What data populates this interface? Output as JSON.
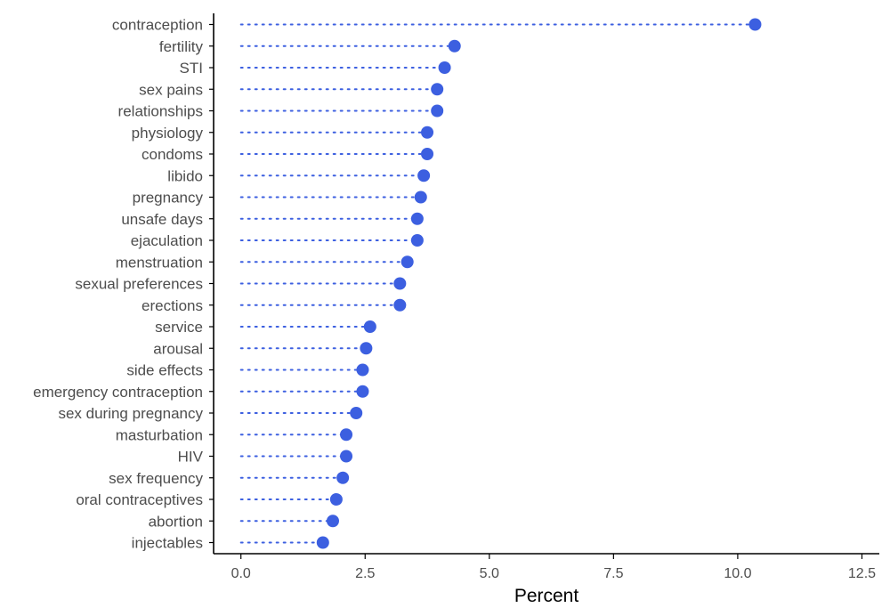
{
  "chart_data": {
    "type": "lollipop",
    "categories": [
      "contraception",
      "fertility",
      "STI",
      "sex pains",
      "relationships",
      "physiology",
      "condoms",
      "libido",
      "pregnancy",
      "unsafe days",
      "ejaculation",
      "menstruation",
      "sexual preferences",
      "erections",
      "service",
      "arousal",
      "side effects",
      "emergency contraception",
      "sex during pregnancy",
      "masturbation",
      "HIV",
      "sex frequency",
      "oral contraceptives",
      "abortion",
      "injectables"
    ],
    "values": [
      10.35,
      4.3,
      4.1,
      3.95,
      3.95,
      3.75,
      3.75,
      3.68,
      3.62,
      3.55,
      3.55,
      3.35,
      3.2,
      3.2,
      2.6,
      2.52,
      2.45,
      2.45,
      2.32,
      2.12,
      2.12,
      2.05,
      1.92,
      1.85,
      1.65
    ],
    "title": "",
    "xlabel": "Percent",
    "ylabel": "",
    "xlim": [
      -0.55,
      12.85
    ],
    "xticks": [
      0,
      2.5,
      5,
      7.5,
      10,
      12.5
    ],
    "xtick_labels": [
      "0.0",
      "2.5",
      "5.0",
      "7.5",
      "10.0",
      "12.5"
    ],
    "grid": false,
    "legend": "none",
    "colors": {
      "point": "#3c5fe0",
      "stem": "#3c5fe0",
      "axis": "#000000",
      "text": "#4d4d4d"
    }
  }
}
